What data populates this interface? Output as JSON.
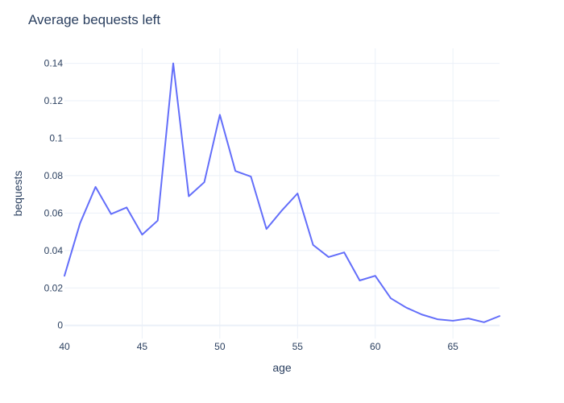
{
  "chart_data": {
    "type": "line",
    "title": "Average bequests left",
    "xlabel": "age",
    "ylabel": "bequests",
    "xlim": [
      40,
      68
    ],
    "ylim": [
      -0.007,
      0.148
    ],
    "xticks": [
      40,
      45,
      50,
      55,
      60,
      65
    ],
    "xtick_labels": [
      "40",
      "45",
      "50",
      "55",
      "60",
      "65"
    ],
    "yticks": [
      0,
      0.02,
      0.04,
      0.06,
      0.08,
      0.1,
      0.12,
      0.14
    ],
    "ytick_labels": [
      "0",
      "0.02",
      "0.04",
      "0.06",
      "0.08",
      "0.1",
      "0.12",
      "0.14"
    ],
    "grid": true,
    "legend": "none",
    "colors": {
      "series": "#636efa",
      "grid": "#ebf0f8",
      "text": "#2a3f5f"
    },
    "x": [
      40,
      41,
      42,
      43,
      44,
      45,
      46,
      47,
      48,
      49,
      50,
      51,
      52,
      53,
      54,
      55,
      56,
      57,
      58,
      59,
      60,
      61,
      62,
      63,
      64,
      65,
      66,
      67,
      68
    ],
    "series": [
      {
        "values": [
          0.0265,
          0.0545,
          0.074,
          0.0595,
          0.063,
          0.0485,
          0.056,
          0.14,
          0.069,
          0.0765,
          0.1125,
          0.0825,
          0.0795,
          0.0515,
          0.0615,
          0.0705,
          0.043,
          0.0365,
          0.039,
          0.024,
          0.0265,
          0.0145,
          0.0095,
          0.0058,
          0.0033,
          0.0025,
          0.0037,
          0.0017,
          0.005
        ]
      }
    ]
  }
}
